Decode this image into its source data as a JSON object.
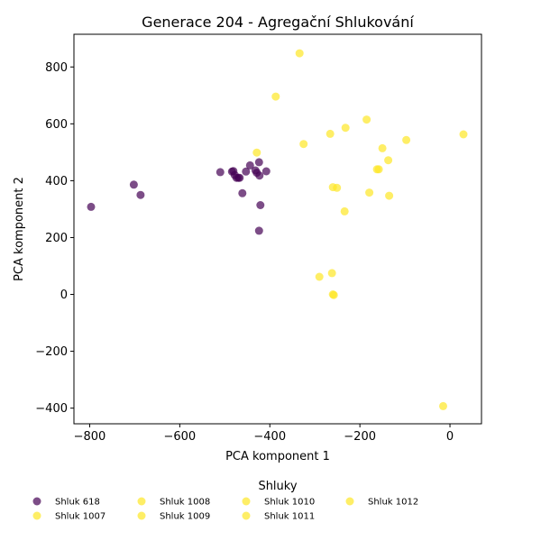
{
  "chart_data": {
    "type": "scatter",
    "title": "Generace 204 - Agregační Shlukování",
    "xlabel": "PCA komponent 1",
    "ylabel": "PCA komponent 2",
    "xlim": [
      -835,
      70
    ],
    "ylim": [
      -455,
      915
    ],
    "xticks": [
      -800,
      -600,
      -400,
      -200,
      0
    ],
    "yticks": [
      -400,
      -200,
      0,
      200,
      400,
      600,
      800
    ],
    "xtick_labels": [
      "−800",
      "−600",
      "−400",
      "−200",
      "0"
    ],
    "ytick_labels": [
      "−400",
      "−200",
      "0",
      "200",
      "400",
      "600",
      "800"
    ],
    "grid": false,
    "legend": {
      "title": "Shluky",
      "placement": "bottom-center",
      "entries": [
        {
          "name": "Shluk 618",
          "color": "#440154"
        },
        {
          "name": "Shluk 1007",
          "color": "#fde725"
        },
        {
          "name": "Shluk 1008",
          "color": "#fde725"
        },
        {
          "name": "Shluk 1009",
          "color": "#fde725"
        },
        {
          "name": "Shluk 1010",
          "color": "#fde725"
        },
        {
          "name": "Shluk 1011",
          "color": "#fde725"
        },
        {
          "name": "Shluk 1012",
          "color": "#fde725"
        }
      ]
    },
    "series": [
      {
        "name": "Shluk 618",
        "color": "#440154",
        "points": [
          [
            -797,
            308
          ],
          [
            -702,
            386
          ],
          [
            -687,
            350
          ],
          [
            -510,
            430
          ],
          [
            -484,
            432
          ],
          [
            -481,
            434
          ],
          [
            -478,
            420
          ],
          [
            -474,
            410
          ],
          [
            -470,
            410
          ],
          [
            -467,
            410
          ],
          [
            -461,
            356
          ],
          [
            -453,
            432
          ],
          [
            -444,
            454
          ],
          [
            -432,
            436
          ],
          [
            -429,
            428
          ],
          [
            -424,
            465
          ],
          [
            -423,
            418
          ],
          [
            -421,
            314
          ],
          [
            -424,
            224
          ],
          [
            -408,
            433
          ]
        ]
      },
      {
        "name": "Shluk 1007",
        "color": "#fde725",
        "points": [
          [
            -334,
            848
          ],
          [
            -387,
            696
          ],
          [
            -429,
            499
          ],
          [
            -325,
            529
          ],
          [
            -266,
            565
          ]
        ]
      },
      {
        "name": "Shluk 1008",
        "color": "#fde725",
        "points": [
          [
            -232,
            586
          ],
          [
            -185,
            615
          ],
          [
            -150,
            514
          ],
          [
            -97,
            543
          ],
          [
            30,
            563
          ]
        ]
      },
      {
        "name": "Shluk 1009",
        "color": "#fde725",
        "points": [
          [
            -260,
            377
          ],
          [
            -251,
            375
          ],
          [
            -162,
            440
          ],
          [
            -158,
            440
          ],
          [
            -137,
            472
          ],
          [
            -179,
            358
          ],
          [
            -135,
            347
          ],
          [
            -234,
            292
          ]
        ]
      },
      {
        "name": "Shluk 1010",
        "color": "#fde725",
        "points": [
          [
            -290,
            62
          ],
          [
            -262,
            75
          ]
        ]
      },
      {
        "name": "Shluk 1011",
        "color": "#fde725",
        "points": [
          [
            -260,
            0
          ],
          [
            -258,
            -2
          ]
        ]
      },
      {
        "name": "Shluk 1012",
        "color": "#fde725",
        "points": [
          [
            -15,
            -393
          ]
        ]
      }
    ]
  }
}
